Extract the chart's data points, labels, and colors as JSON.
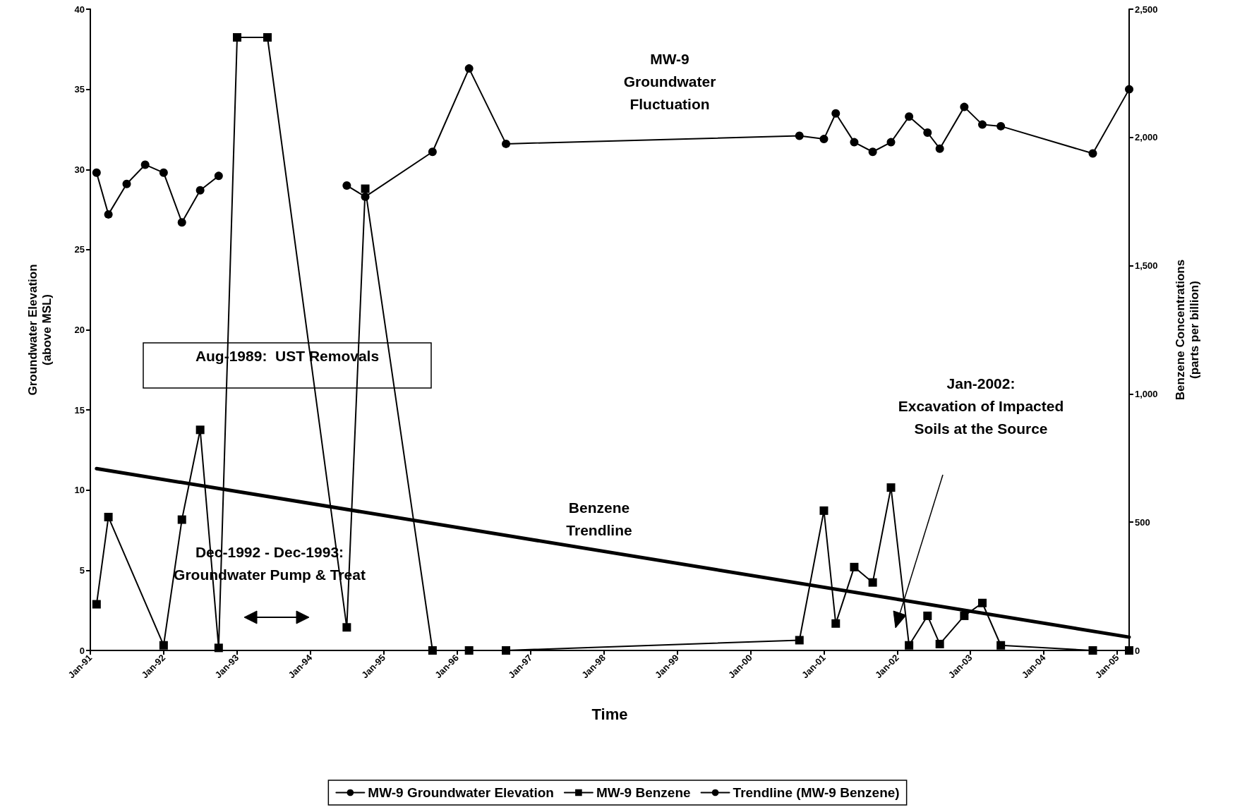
{
  "chart_data": {
    "type": "line",
    "xlabel": "Time",
    "ylabel": "Groundwater Elevation\n(above MSL)",
    "y2label": "Benzene Concentrations\n(parts per billion)",
    "xlim": [
      "1991-01",
      "2005-03"
    ],
    "xticks": [
      {
        "value": "1991-01",
        "label": "Jan-91"
      },
      {
        "value": "1992-01",
        "label": "Jan-92"
      },
      {
        "value": "1993-01",
        "label": "Jan-93"
      },
      {
        "value": "1994-01",
        "label": "Jan-94"
      },
      {
        "value": "1995-01",
        "label": "Jan-95"
      },
      {
        "value": "1996-01",
        "label": "Jan-96"
      },
      {
        "value": "1997-01",
        "label": "Jan-97"
      },
      {
        "value": "1998-01",
        "label": "Jan-98"
      },
      {
        "value": "1999-01",
        "label": "Jan-99"
      },
      {
        "value": "2000-01",
        "label": "Jan-00"
      },
      {
        "value": "2001-01",
        "label": "Jan-01"
      },
      {
        "value": "2002-01",
        "label": "Jan-02"
      },
      {
        "value": "2003-01",
        "label": "Jan-03"
      },
      {
        "value": "2004-01",
        "label": "Jan-04"
      },
      {
        "value": "2005-01",
        "label": "Jan-05"
      }
    ],
    "ylim": [
      0,
      40
    ],
    "yticks": [
      0,
      5,
      10,
      15,
      20,
      25,
      30,
      35,
      40
    ],
    "y2lim": [
      0,
      2500
    ],
    "y2ticks": [
      0,
      500,
      {
        "value": 1000,
        "label": "1,000"
      },
      {
        "value": 1500,
        "label": "1,500"
      },
      {
        "value": 2000,
        "label": "2,000"
      },
      {
        "value": 2500,
        "label": "2,500"
      }
    ],
    "series": [
      {
        "name": "MW-9 Groundwater Elevation",
        "color": "#000000",
        "marker": "circle",
        "x": [
          "1991-02",
          "1991-04",
          "1991-07",
          "1991-10",
          "1992-01",
          "1992-04",
          "1992-07",
          "1992-10",
          "1993-06",
          "1994-07",
          "1994-10",
          "1995-09",
          "1996-03",
          "1996-09",
          "2000-09",
          "2001-01",
          "2001-03",
          "2001-06",
          "2001-09",
          "2001-12",
          "2002-03",
          "2002-06",
          "2002-08",
          "2002-12",
          "2003-03",
          "2003-06",
          "2004-09",
          "2005-03"
        ],
        "values": [
          29.8,
          27.2,
          29.1,
          30.3,
          29.8,
          26.7,
          28.7,
          29.6,
          null,
          29.0,
          28.3,
          31.1,
          36.3,
          31.6,
          32.1,
          31.9,
          33.5,
          31.7,
          31.1,
          31.7,
          33.3,
          32.3,
          31.3,
          33.9,
          32.8,
          32.7,
          31.0,
          35.0
        ]
      },
      {
        "name": "MW-9 Benzene",
        "color": "#000000",
        "marker": "square",
        "axis": "y2",
        "x": [
          "1991-02",
          "1991-04",
          "1992-01",
          "1992-04",
          "1992-07",
          "1992-10",
          "1993-01",
          "1993-06",
          "1994-07",
          "1994-10",
          "1995-09",
          "1996-03",
          "1996-09",
          "2000-09",
          "2001-01",
          "2001-03",
          "2001-06",
          "2001-09",
          "2001-12",
          "2002-03",
          "2002-06",
          "2002-08",
          "2002-12",
          "2003-03",
          "2003-06",
          "2004-09",
          "2005-03"
        ],
        "values": [
          180,
          520,
          20,
          510,
          860,
          10,
          2390,
          2390,
          90,
          1800,
          0,
          0,
          0,
          40,
          545,
          105,
          325,
          265,
          635,
          20,
          135,
          25,
          135,
          185,
          20,
          0,
          0
        ]
      },
      {
        "name": "Trendline (MW-9 Benzene)",
        "color": "#000000",
        "marker": "none",
        "axis": "y2",
        "x": [
          "1991-02",
          "2005-03"
        ],
        "values": [
          709,
          52
        ]
      }
    ],
    "annotations": [
      "MW-9\nGroundwater\nFluctuation",
      "Benzene\nTrendline",
      "Aug-1989:  UST Removals",
      "Dec-1992 - Dec-1993:\nGroundwater Pump & Treat",
      "Jan-2002:\nExcavation of Impacted\nSoils at the Source"
    ],
    "legend": "bottom",
    "grid": false
  }
}
